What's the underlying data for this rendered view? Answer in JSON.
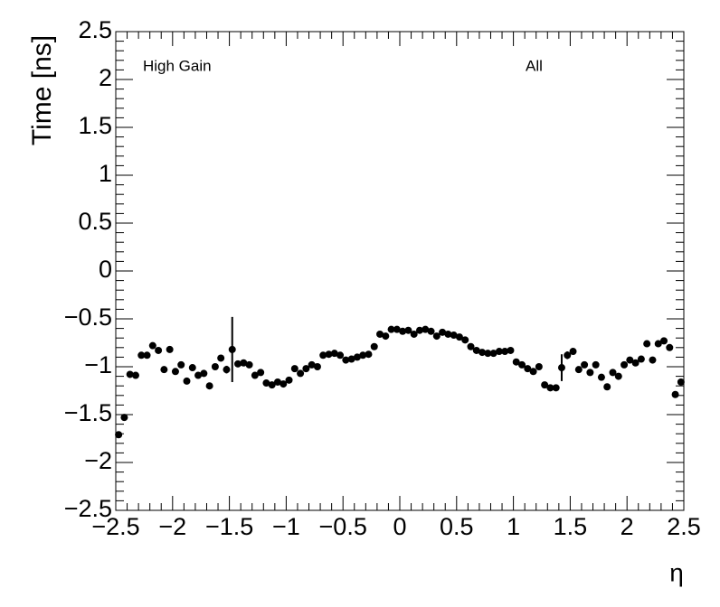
{
  "chart_data": {
    "type": "scatter",
    "x_label": "η",
    "y_label": "Time [ns]",
    "annotations": [
      "High Gain",
      "All"
    ],
    "x": [
      -2.475,
      -2.425,
      -2.375,
      -2.325,
      -2.275,
      -2.225,
      -2.175,
      -2.125,
      -2.075,
      -2.025,
      -1.975,
      -1.925,
      -1.875,
      -1.825,
      -1.775,
      -1.725,
      -1.675,
      -1.625,
      -1.575,
      -1.525,
      -1.475,
      -1.425,
      -1.375,
      -1.325,
      -1.275,
      -1.225,
      -1.175,
      -1.125,
      -1.075,
      -1.025,
      -0.975,
      -0.925,
      -0.875,
      -0.825,
      -0.775,
      -0.725,
      -0.675,
      -0.625,
      -0.575,
      -0.525,
      -0.475,
      -0.425,
      -0.375,
      -0.325,
      -0.275,
      -0.225,
      -0.175,
      -0.125,
      -0.075,
      -0.025,
      0.025,
      0.075,
      0.125,
      0.175,
      0.225,
      0.275,
      0.325,
      0.375,
      0.425,
      0.475,
      0.525,
      0.575,
      0.625,
      0.675,
      0.725,
      0.775,
      0.825,
      0.875,
      0.925,
      0.975,
      1.025,
      1.075,
      1.125,
      1.175,
      1.225,
      1.275,
      1.325,
      1.375,
      1.425,
      1.475,
      1.525,
      1.575,
      1.625,
      1.675,
      1.725,
      1.775,
      1.825,
      1.875,
      1.925,
      1.975,
      2.025,
      2.075,
      2.125,
      2.175,
      2.225,
      2.275,
      2.325,
      2.375,
      2.425,
      2.475
    ],
    "series": [
      {
        "color": "#000000",
        "values": [
          -1.71,
          -1.53,
          -1.08,
          -1.09,
          -0.88,
          -0.88,
          -0.78,
          -0.83,
          -1.03,
          -0.82,
          -1.05,
          -0.98,
          -1.15,
          -1.01,
          -1.09,
          -1.07,
          -1.2,
          -1.0,
          -0.91,
          -1.03,
          -0.82,
          -0.97,
          -0.96,
          -0.98,
          -1.09,
          -1.06,
          -1.17,
          -1.19,
          -1.16,
          -1.18,
          -1.14,
          -1.02,
          -1.07,
          -1.02,
          -0.98,
          -1.0,
          -0.88,
          -0.87,
          -0.86,
          -0.88,
          -0.93,
          -0.92,
          -0.9,
          -0.88,
          -0.87,
          -0.79,
          -0.66,
          -0.68,
          -0.61,
          -0.61,
          -0.63,
          -0.62,
          -0.66,
          -0.62,
          -0.61,
          -0.63,
          -0.68,
          -0.64,
          -0.66,
          -0.67,
          -0.69,
          -0.72,
          -0.79,
          -0.83,
          -0.85,
          -0.86,
          -0.86,
          -0.84,
          -0.84,
          -0.83,
          -0.95,
          -0.98,
          -1.02,
          -1.05,
          -1.0,
          -1.19,
          -1.22,
          -1.22,
          -1.01,
          -0.88,
          -0.84,
          -1.03,
          -0.98,
          -1.06,
          -0.98,
          -1.11,
          -1.21,
          -1.06,
          -1.1,
          -0.98,
          -0.93,
          -0.96,
          -0.92,
          -0.76,
          -0.93,
          -0.76,
          -0.73,
          -0.8,
          -1.29,
          -1.16
        ],
        "errors": [
          0.03,
          0.03,
          0.02,
          0.02,
          0.02,
          0.02,
          0.02,
          0.02,
          0.02,
          0.02,
          0.02,
          0.02,
          0.02,
          0.02,
          0.02,
          0.02,
          0.02,
          0.02,
          0.02,
          0.04,
          0.34,
          0.02,
          0.02,
          0.02,
          0.02,
          0.02,
          0.02,
          0.02,
          0.02,
          0.02,
          0.02,
          0.02,
          0.02,
          0.02,
          0.02,
          0.02,
          0.02,
          0.02,
          0.02,
          0.02,
          0.02,
          0.02,
          0.02,
          0.02,
          0.02,
          0.02,
          0.02,
          0.02,
          0.02,
          0.02,
          0.02,
          0.02,
          0.02,
          0.02,
          0.02,
          0.02,
          0.02,
          0.02,
          0.02,
          0.02,
          0.02,
          0.02,
          0.02,
          0.02,
          0.02,
          0.02,
          0.02,
          0.02,
          0.02,
          0.02,
          0.02,
          0.02,
          0.02,
          0.02,
          0.02,
          0.02,
          0.02,
          0.02,
          0.14,
          0.04,
          0.02,
          0.02,
          0.02,
          0.02,
          0.02,
          0.02,
          0.02,
          0.02,
          0.02,
          0.02,
          0.02,
          0.02,
          0.02,
          0.02,
          0.02,
          0.02,
          0.02,
          0.02,
          0.03,
          0.03
        ]
      }
    ],
    "xlim": [
      -2.5,
      2.5
    ],
    "xticks": [
      {
        "value": -2.5,
        "label": "−2.5"
      },
      {
        "value": -2,
        "label": "−2"
      },
      {
        "value": -1.5,
        "label": "−1.5"
      },
      {
        "value": -1,
        "label": "−1"
      },
      {
        "value": -0.5,
        "label": "−0.5"
      },
      0,
      0.5,
      1,
      1.5,
      2,
      2.5
    ],
    "ylim": [
      -2.5,
      2.5
    ],
    "yticks": [
      {
        "value": -2.5,
        "label": "−2.5"
      },
      {
        "value": -2,
        "label": "−2"
      },
      {
        "value": -1.5,
        "label": "−1.5"
      },
      {
        "value": -1,
        "label": "−1"
      },
      {
        "value": -0.5,
        "label": "−0.5"
      },
      0,
      0.5,
      1,
      1.5,
      2,
      2.5
    ]
  }
}
